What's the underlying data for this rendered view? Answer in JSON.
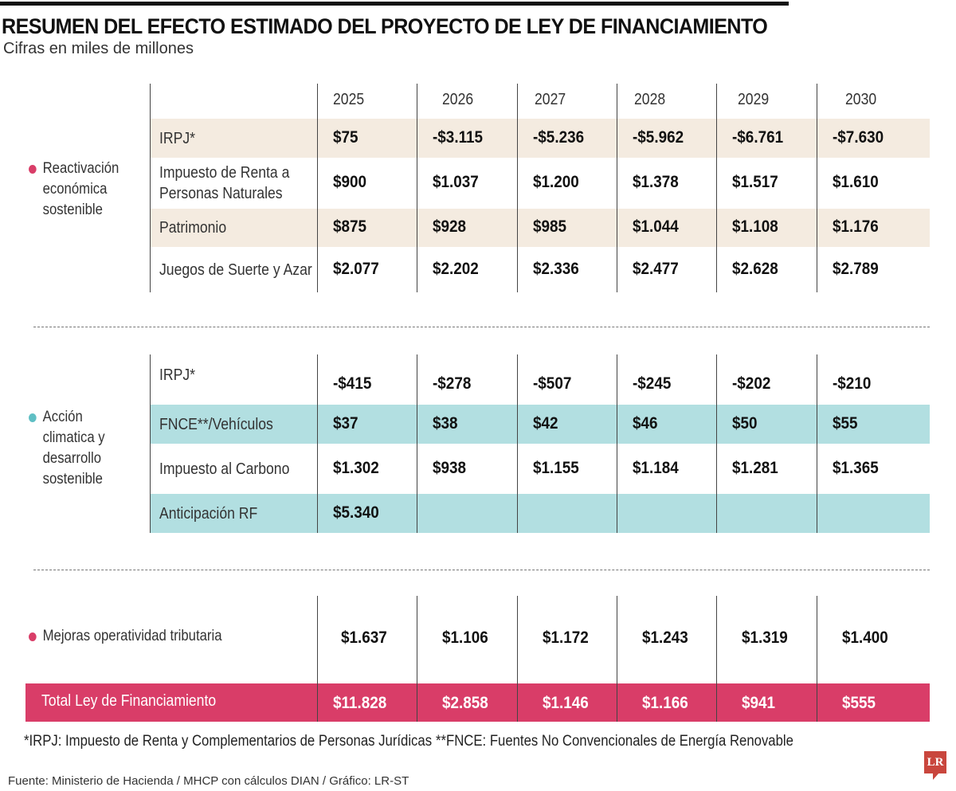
{
  "header": {
    "title": "RESUMEN DEL EFECTO ESTIMADO DEL PROYECTO DE LEY DE FINANCIAMIENTO",
    "subtitle": "Cifras en miles de millones"
  },
  "colors": {
    "pink": "#d93d68",
    "teal": "#5fbfc4",
    "beige_row": "#f4ebe0",
    "teal_row": "#b2dfe1",
    "logo_red": "#c9463d"
  },
  "chart_data": {
    "type": "table",
    "title": "RESUMEN DEL EFECTO ESTIMADO DEL PROYECTO DE LEY DE FINANCIAMIENTO",
    "subtitle": "Cifras en miles de millones",
    "columns": [
      "2025",
      "2026",
      "2027",
      "2028",
      "2029",
      "2030"
    ],
    "sections": [
      {
        "category": "Reactivación económica sostenible",
        "category_lines": [
          "Reactivación",
          "económica",
          "sostenible"
        ],
        "rows": [
          {
            "label": "IRPJ*",
            "label_lines": [
              "IRPJ*"
            ],
            "values": [
              "$75",
              "-$3.115",
              "-$5.236",
              "-$5.962",
              "-$6.761",
              "-$7.630"
            ]
          },
          {
            "label": "Impuesto de Renta a Personas Naturales",
            "label_lines": [
              "Impuesto de Renta a",
              "Personas Naturales"
            ],
            "values": [
              "$900",
              "$1.037",
              "$1.200",
              "$1.378",
              "$1.517",
              "$1.610"
            ]
          },
          {
            "label": "Patrimonio",
            "label_lines": [
              "Patrimonio"
            ],
            "values": [
              "$875",
              "$928",
              "$985",
              "$1.044",
              "$1.108",
              "$1.176"
            ]
          },
          {
            "label": "Juegos de Suerte y Azar",
            "label_lines": [
              "Juegos de Suerte y Azar"
            ],
            "values": [
              "$2.077",
              "$2.202",
              "$2.336",
              "$2.477",
              "$2.628",
              "$2.789"
            ]
          }
        ]
      },
      {
        "category": "Acción climatica y desarrollo sostenible",
        "category_lines": [
          "Acción",
          "climatica y",
          "desarrollo",
          "sostenible"
        ],
        "rows": [
          {
            "label": "IRPJ*",
            "label_lines": [
              "IRPJ*"
            ],
            "values": [
              "-$415",
              "-$278",
              "-$507",
              "-$245",
              "-$202",
              "-$210"
            ]
          },
          {
            "label": "FNCE**/Vehículos",
            "label_lines": [
              "FNCE**/Vehículos"
            ],
            "values": [
              "$37",
              "$38",
              "$42",
              "$46",
              "$50",
              "$55"
            ]
          },
          {
            "label": "Impuesto al Carbono",
            "label_lines": [
              "Impuesto al Carbono"
            ],
            "values": [
              "$1.302",
              "$938",
              "$1.155",
              "$1.184",
              "$1.281",
              "$1.365"
            ]
          },
          {
            "label": "Anticipación RF",
            "label_lines": [
              "Anticipación RF"
            ],
            "values": [
              "$5.340",
              "",
              "",
              "",
              "",
              ""
            ]
          }
        ]
      },
      {
        "category": "Mejoras operatividad tributaria",
        "category_lines": [
          "Mejoras operatividad tributaria"
        ],
        "rows": [
          {
            "label": "Mejoras operatividad tributaria",
            "values": [
              "$1.637",
              "$1.106",
              "$1.172",
              "$1.243",
              "$1.319",
              "$1.400"
            ]
          }
        ]
      }
    ],
    "total": {
      "label": "Total Ley de Financiamiento",
      "values": [
        "$11.828",
        "$2.858",
        "$1.146",
        "$1.166",
        "$941",
        "$555"
      ]
    }
  },
  "footnotes": {
    "irpj": "*IRPJ: Impuesto de Renta y Complementarios de Personas Jurídicas",
    "fnce": "**FNCE: Fuentes No Convencionales de Energía Renovable"
  },
  "source": "Fuente: Ministerio de Hacienda / MHCP con cálculos DIAN / Gráfico: LR-ST",
  "logo": {
    "text": "LR",
    "icon": "lr-logo-icon"
  }
}
